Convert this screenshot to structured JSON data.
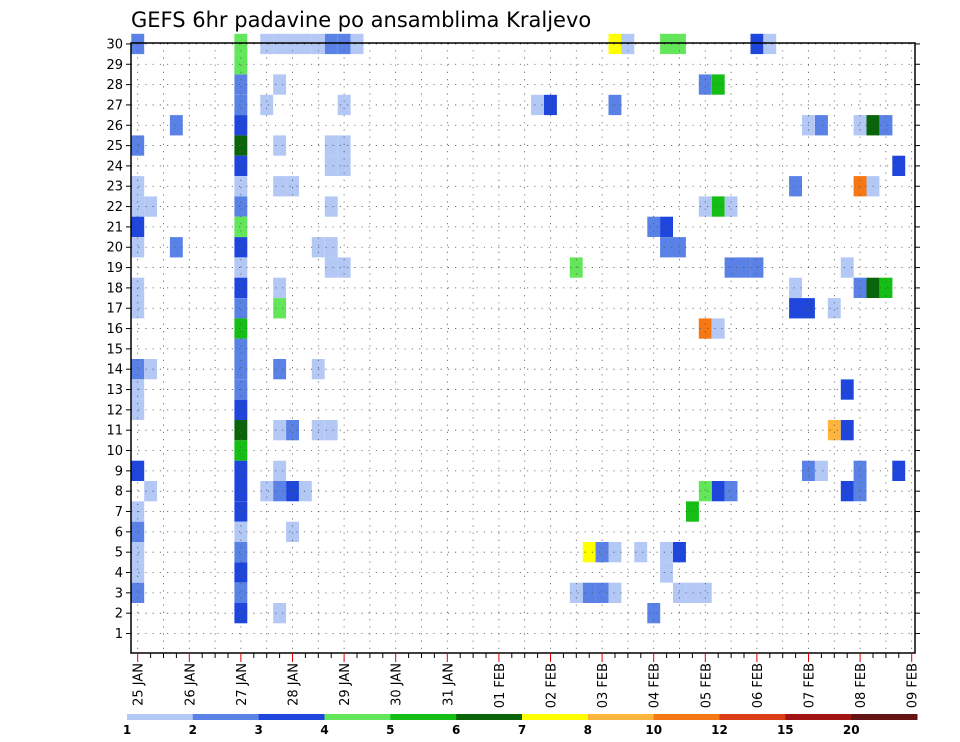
{
  "chart_data": {
    "type": "heatmap",
    "title": "GEFS 6hr padavine po ansamblima Kraljevo",
    "xlabel": "",
    "ylabel": "",
    "x_start_label": "25 JAN",
    "x_steps": 62,
    "step_hours": 6,
    "x_tick_labels": [
      "25 JAN",
      "26 JAN",
      "27 JAN",
      "28 JAN",
      "29 JAN",
      "30 JAN",
      "31 JAN",
      "01 FEB",
      "02 FEB",
      "03 FEB",
      "04 FEB",
      "05 FEB",
      "06 FEB",
      "07 FEB",
      "08 FEB",
      "09 FEB"
    ],
    "y_members": [
      "1",
      "2",
      "3",
      "4",
      "5",
      "6",
      "7",
      "8",
      "9",
      "10",
      "11",
      "12",
      "13",
      "14",
      "15",
      "16",
      "17",
      "18",
      "19",
      "20",
      "21",
      "22",
      "23",
      "24",
      "25",
      "26",
      "27",
      "28",
      "29",
      "30"
    ],
    "grid": true,
    "legend_position": "bottom",
    "scale": {
      "labels": [
        "1",
        "2",
        "3",
        "4",
        "5",
        "6",
        "7",
        "8",
        "10",
        "12",
        "15",
        "20"
      ],
      "colors": [
        "#b4c8f5",
        "#5a82e6",
        "#1e46dc",
        "#64e65a",
        "#14be14",
        "#0a640a",
        "#ffff00",
        "#ffb43c",
        "#f57814",
        "#dc3c14",
        "#a01414",
        "#641414"
      ],
      "class_min_values": [
        1,
        2,
        3,
        4,
        5,
        6,
        7,
        8,
        10,
        12,
        15,
        20
      ]
    },
    "cells": [
      {
        "member": 30,
        "step": 0,
        "level": 1
      },
      {
        "member": 30,
        "step": 8,
        "level": 3
      },
      {
        "member": 30,
        "step": 10,
        "level": 0
      },
      {
        "member": 30,
        "step": 11,
        "level": 0
      },
      {
        "member": 30,
        "step": 12,
        "level": 0
      },
      {
        "member": 30,
        "step": 13,
        "level": 0
      },
      {
        "member": 30,
        "step": 14,
        "level": 0
      },
      {
        "member": 30,
        "step": 15,
        "level": 1
      },
      {
        "member": 30,
        "step": 16,
        "level": 1
      },
      {
        "member": 30,
        "step": 17,
        "level": 0
      },
      {
        "member": 30,
        "step": 37,
        "level": 6
      },
      {
        "member": 30,
        "step": 38,
        "level": 0
      },
      {
        "member": 30,
        "step": 41,
        "level": 3
      },
      {
        "member": 30,
        "step": 42,
        "level": 3
      },
      {
        "member": 30,
        "step": 48,
        "level": 2
      },
      {
        "member": 30,
        "step": 49,
        "level": 0
      },
      {
        "member": 29,
        "step": 8,
        "level": 3
      },
      {
        "member": 28,
        "step": 8,
        "level": 1
      },
      {
        "member": 28,
        "step": 11,
        "level": 0
      },
      {
        "member": 28,
        "step": 44,
        "level": 1
      },
      {
        "member": 28,
        "step": 45,
        "level": 4
      },
      {
        "member": 27,
        "step": 8,
        "level": 1
      },
      {
        "member": 27,
        "step": 10,
        "level": 0
      },
      {
        "member": 27,
        "step": 16,
        "level": 0
      },
      {
        "member": 27,
        "step": 31,
        "level": 0
      },
      {
        "member": 27,
        "step": 32,
        "level": 2
      },
      {
        "member": 27,
        "step": 37,
        "level": 1
      },
      {
        "member": 26,
        "step": 8,
        "level": 2
      },
      {
        "member": 26,
        "step": 3,
        "level": 1
      },
      {
        "member": 26,
        "step": 52,
        "level": 0
      },
      {
        "member": 26,
        "step": 53,
        "level": 1
      },
      {
        "member": 26,
        "step": 56,
        "level": 0
      },
      {
        "member": 26,
        "step": 57,
        "level": 5
      },
      {
        "member": 26,
        "step": 58,
        "level": 1
      },
      {
        "member": 25,
        "step": 0,
        "level": 1
      },
      {
        "member": 25,
        "step": 8,
        "level": 5
      },
      {
        "member": 25,
        "step": 11,
        "level": 0
      },
      {
        "member": 25,
        "step": 15,
        "level": 0
      },
      {
        "member": 25,
        "step": 16,
        "level": 0
      },
      {
        "member": 24,
        "step": 8,
        "level": 2
      },
      {
        "member": 24,
        "step": 15,
        "level": 0
      },
      {
        "member": 24,
        "step": 16,
        "level": 0
      },
      {
        "member": 24,
        "step": 59,
        "level": 2
      },
      {
        "member": 23,
        "step": 0,
        "level": 0
      },
      {
        "member": 23,
        "step": 8,
        "level": 0
      },
      {
        "member": 23,
        "step": 11,
        "level": 0
      },
      {
        "member": 23,
        "step": 12,
        "level": 0
      },
      {
        "member": 23,
        "step": 51,
        "level": 1
      },
      {
        "member": 23,
        "step": 56,
        "level": 8
      },
      {
        "member": 23,
        "step": 57,
        "level": 0
      },
      {
        "member": 22,
        "step": 0,
        "level": 0
      },
      {
        "member": 22,
        "step": 1,
        "level": 0
      },
      {
        "member": 22,
        "step": 8,
        "level": 1
      },
      {
        "member": 22,
        "step": 15,
        "level": 0
      },
      {
        "member": 22,
        "step": 44,
        "level": 0
      },
      {
        "member": 22,
        "step": 45,
        "level": 4
      },
      {
        "member": 22,
        "step": 46,
        "level": 0
      },
      {
        "member": 21,
        "step": 0,
        "level": 2
      },
      {
        "member": 21,
        "step": 8,
        "level": 3
      },
      {
        "member": 21,
        "step": 40,
        "level": 1
      },
      {
        "member": 21,
        "step": 41,
        "level": 2
      },
      {
        "member": 20,
        "step": 0,
        "level": 0
      },
      {
        "member": 20,
        "step": 3,
        "level": 1
      },
      {
        "member": 20,
        "step": 8,
        "level": 2
      },
      {
        "member": 20,
        "step": 14,
        "level": 0
      },
      {
        "member": 20,
        "step": 15,
        "level": 0
      },
      {
        "member": 20,
        "step": 41,
        "level": 1
      },
      {
        "member": 20,
        "step": 42,
        "level": 1
      },
      {
        "member": 19,
        "step": 8,
        "level": 0
      },
      {
        "member": 19,
        "step": 15,
        "level": 0
      },
      {
        "member": 19,
        "step": 16,
        "level": 0
      },
      {
        "member": 19,
        "step": 34,
        "level": 3
      },
      {
        "member": 19,
        "step": 46,
        "level": 1
      },
      {
        "member": 19,
        "step": 47,
        "level": 1
      },
      {
        "member": 19,
        "step": 48,
        "level": 1
      },
      {
        "member": 19,
        "step": 55,
        "level": 0
      },
      {
        "member": 18,
        "step": 0,
        "level": 0
      },
      {
        "member": 18,
        "step": 8,
        "level": 2
      },
      {
        "member": 18,
        "step": 11,
        "level": 0
      },
      {
        "member": 18,
        "step": 51,
        "level": 0
      },
      {
        "member": 18,
        "step": 56,
        "level": 1
      },
      {
        "member": 18,
        "step": 57,
        "level": 5
      },
      {
        "member": 18,
        "step": 58,
        "level": 4
      },
      {
        "member": 17,
        "step": 0,
        "level": 0
      },
      {
        "member": 17,
        "step": 8,
        "level": 1
      },
      {
        "member": 17,
        "step": 11,
        "level": 3
      },
      {
        "member": 17,
        "step": 51,
        "level": 2
      },
      {
        "member": 17,
        "step": 52,
        "level": 2
      },
      {
        "member": 17,
        "step": 54,
        "level": 0
      },
      {
        "member": 16,
        "step": 8,
        "level": 4
      },
      {
        "member": 16,
        "step": 44,
        "level": 8
      },
      {
        "member": 16,
        "step": 45,
        "level": 0
      },
      {
        "member": 15,
        "step": 8,
        "level": 1
      },
      {
        "member": 14,
        "step": 0,
        "level": 1
      },
      {
        "member": 14,
        "step": 1,
        "level": 0
      },
      {
        "member": 14,
        "step": 8,
        "level": 1
      },
      {
        "member": 14,
        "step": 11,
        "level": 1
      },
      {
        "member": 14,
        "step": 14,
        "level": 0
      },
      {
        "member": 13,
        "step": 0,
        "level": 0
      },
      {
        "member": 13,
        "step": 8,
        "level": 1
      },
      {
        "member": 13,
        "step": 55,
        "level": 2
      },
      {
        "member": 12,
        "step": 0,
        "level": 0
      },
      {
        "member": 12,
        "step": 8,
        "level": 2
      },
      {
        "member": 11,
        "step": 8,
        "level": 5
      },
      {
        "member": 11,
        "step": 11,
        "level": 0
      },
      {
        "member": 11,
        "step": 12,
        "level": 1
      },
      {
        "member": 11,
        "step": 14,
        "level": 0
      },
      {
        "member": 11,
        "step": 15,
        "level": 0
      },
      {
        "member": 11,
        "step": 54,
        "level": 7
      },
      {
        "member": 11,
        "step": 55,
        "level": 2
      },
      {
        "member": 10,
        "step": 8,
        "level": 4
      },
      {
        "member": 9,
        "step": 0,
        "level": 2
      },
      {
        "member": 9,
        "step": 8,
        "level": 2
      },
      {
        "member": 9,
        "step": 11,
        "level": 0
      },
      {
        "member": 9,
        "step": 52,
        "level": 1
      },
      {
        "member": 9,
        "step": 53,
        "level": 0
      },
      {
        "member": 9,
        "step": 56,
        "level": 1
      },
      {
        "member": 9,
        "step": 59,
        "level": 2
      },
      {
        "member": 8,
        "step": 1,
        "level": 0
      },
      {
        "member": 8,
        "step": 8,
        "level": 2
      },
      {
        "member": 8,
        "step": 10,
        "level": 0
      },
      {
        "member": 8,
        "step": 11,
        "level": 1
      },
      {
        "member": 8,
        "step": 12,
        "level": 2
      },
      {
        "member": 8,
        "step": 13,
        "level": 0
      },
      {
        "member": 8,
        "step": 44,
        "level": 3
      },
      {
        "member": 8,
        "step": 45,
        "level": 2
      },
      {
        "member": 8,
        "step": 46,
        "level": 1
      },
      {
        "member": 8,
        "step": 55,
        "level": 2
      },
      {
        "member": 8,
        "step": 56,
        "level": 1
      },
      {
        "member": 7,
        "step": 0,
        "level": 0
      },
      {
        "member": 7,
        "step": 8,
        "level": 2
      },
      {
        "member": 7,
        "step": 43,
        "level": 4
      },
      {
        "member": 6,
        "step": 0,
        "level": 1
      },
      {
        "member": 6,
        "step": 8,
        "level": 0
      },
      {
        "member": 6,
        "step": 12,
        "level": 0
      },
      {
        "member": 5,
        "step": 0,
        "level": 0
      },
      {
        "member": 5,
        "step": 8,
        "level": 1
      },
      {
        "member": 5,
        "step": 35,
        "level": 6
      },
      {
        "member": 5,
        "step": 36,
        "level": 1
      },
      {
        "member": 5,
        "step": 37,
        "level": 0
      },
      {
        "member": 5,
        "step": 39,
        "level": 0
      },
      {
        "member": 5,
        "step": 41,
        "level": 0
      },
      {
        "member": 5,
        "step": 42,
        "level": 2
      },
      {
        "member": 4,
        "step": 0,
        "level": 0
      },
      {
        "member": 4,
        "step": 8,
        "level": 2
      },
      {
        "member": 4,
        "step": 41,
        "level": 0
      },
      {
        "member": 3,
        "step": 0,
        "level": 1
      },
      {
        "member": 3,
        "step": 8,
        "level": 1
      },
      {
        "member": 3,
        "step": 34,
        "level": 0
      },
      {
        "member": 3,
        "step": 35,
        "level": 1
      },
      {
        "member": 3,
        "step": 36,
        "level": 1
      },
      {
        "member": 3,
        "step": 37,
        "level": 0
      },
      {
        "member": 3,
        "step": 42,
        "level": 0
      },
      {
        "member": 3,
        "step": 43,
        "level": 0
      },
      {
        "member": 3,
        "step": 44,
        "level": 0
      },
      {
        "member": 2,
        "step": 8,
        "level": 2
      },
      {
        "member": 2,
        "step": 11,
        "level": 0
      },
      {
        "member": 2,
        "step": 40,
        "level": 1
      }
    ]
  }
}
